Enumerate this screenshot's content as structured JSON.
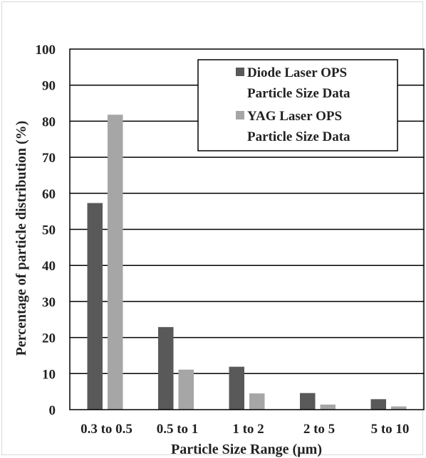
{
  "chart_data": {
    "type": "bar",
    "categories": [
      "0.3 to 0.5",
      "0.5 to 1",
      "1 to 2",
      "2 to 5",
      "5 to 10"
    ],
    "series": [
      {
        "name_lines": [
          "Diode Laser OPS",
          "Particle Size Data"
        ],
        "values": [
          57.3,
          22.9,
          11.9,
          4.6,
          2.9
        ],
        "color": "#595959"
      },
      {
        "name_lines": [
          "YAG Laser OPS",
          "Particle Size Data"
        ],
        "values": [
          81.8,
          11.1,
          4.5,
          1.4,
          0.9
        ],
        "color": "#a6a6a6"
      }
    ],
    "xlabel": "Particle Size Range (µm)",
    "ylabel": "Percentage of particle distribution (%)",
    "ylim": [
      0,
      100
    ],
    "yticks": [
      "0",
      "10",
      "20",
      "30",
      "40",
      "50",
      "60",
      "70",
      "80",
      "90",
      "100"
    ],
    "grid": true,
    "legend_position": "top-right"
  }
}
